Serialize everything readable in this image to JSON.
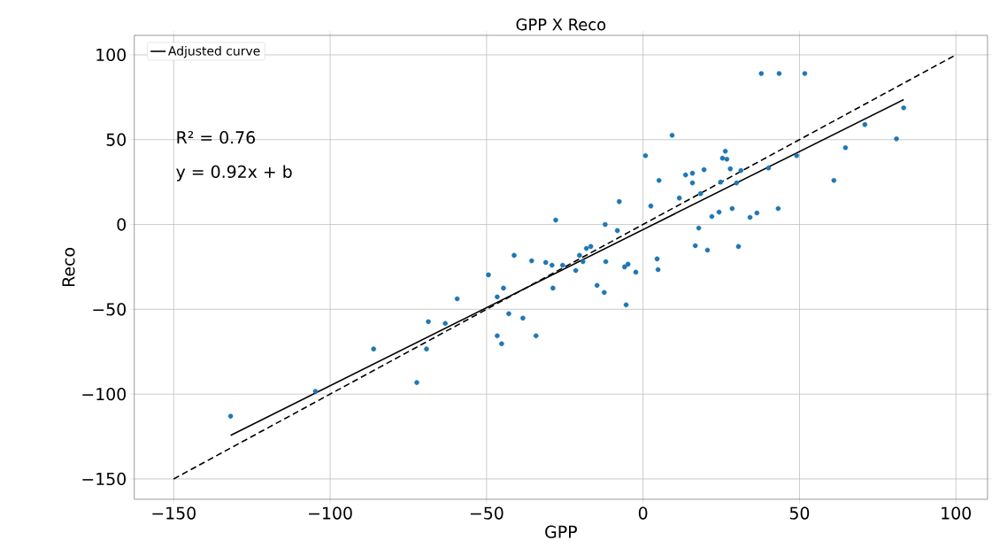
{
  "chart_data": {
    "type": "scatter",
    "title": "GPP X Reco",
    "xlabel": "GPP",
    "ylabel": "Reco",
    "xlim": [
      -162.6,
      110.1
    ],
    "ylim": [
      -162,
      111.5
    ],
    "xticks": [
      {
        "value": -150,
        "label": "−150"
      },
      {
        "value": -100,
        "label": "−100"
      },
      {
        "value": -50,
        "label": "−50"
      },
      0,
      50,
      100
    ],
    "yticks": [
      {
        "value": -150,
        "label": "−150"
      },
      {
        "value": -100,
        "label": "−100"
      },
      {
        "value": -50,
        "label": "−50"
      },
      0,
      50,
      100
    ],
    "grid": true,
    "legend": "top left",
    "annotations": [
      "R² = 0.76",
      "y = 0.92x + b"
    ],
    "series": [
      {
        "color": "#1f77b4",
        "marker": "circle",
        "x": [
          -131.8,
          -104.7,
          -86.1,
          -72.3,
          -69.2,
          -68.6,
          -63.2,
          -59.4,
          -49.4,
          -46.6,
          -46.6,
          -45.2,
          -44.6,
          -42.9,
          -41.2,
          -38.4,
          -35.6,
          -34.2,
          -31.1,
          -29.1,
          -28.8,
          -27.9,
          -25.7,
          -21.5,
          -20.3,
          -19.2,
          -18.1,
          -16.7,
          -14.7,
          -12.4,
          -12.1,
          -11.9,
          -8.2,
          -7.6,
          -5.9,
          -5.4,
          -4.8,
          -2.3,
          0.8,
          2.5,
          4.5,
          4.8,
          5.1,
          9.3,
          11.6,
          13.6,
          15.8,
          15.8,
          16.7,
          17.8,
          18.4,
          19.5,
          20.6,
          22.0,
          24.3,
          24.8,
          25.4,
          26.3,
          26.8,
          27.9,
          28.5,
          29.9,
          30.5,
          31.3,
          34.2,
          36.4,
          37.8,
          40.1,
          43.5,
          43.2,
          51.7,
          49.1,
          61.0,
          64.7,
          70.9,
          81.0,
          83.3
        ],
        "values": [
          -113,
          -98.4,
          -73.4,
          -93.2,
          -73.4,
          -57.3,
          -58.3,
          -43.8,
          -29.7,
          -65.6,
          -42.7,
          -70.3,
          -37.5,
          -52.6,
          -18.2,
          -55.2,
          -21.4,
          -65.6,
          -22.4,
          -24.0,
          -37.5,
          2.6,
          -24,
          -27.1,
          -18.2,
          -21.9,
          -14.1,
          -13,
          -35.9,
          -40.1,
          0,
          -21.9,
          -3.6,
          13.5,
          -25,
          -47.4,
          -23.4,
          -28.1,
          40.6,
          10.9,
          -20.3,
          -26.6,
          26,
          52.6,
          15.6,
          29.2,
          30.2,
          24.5,
          -12.5,
          -2.1,
          18.2,
          32.3,
          -15.1,
          4.7,
          7.3,
          25,
          39.1,
          43.2,
          38.5,
          32.8,
          9.4,
          24.5,
          -13,
          31.8,
          4.2,
          6.8,
          89,
          33.3,
          89,
          9.4,
          89,
          40.6,
          26,
          45.3,
          58.9,
          50.5,
          68.8
        ]
      },
      {
        "type": "line",
        "name": "Adjusted curve",
        "color": "#000000",
        "marker": "none",
        "line_style": "solid",
        "x": [
          -131.8,
          83.3
        ],
        "values": [
          -124.3,
          73.6
        ]
      },
      {
        "type": "line",
        "color": "#000000",
        "marker": "none",
        "line_style": "dashed",
        "x": [
          -150,
          100
        ],
        "values": [
          -150,
          100
        ]
      }
    ]
  }
}
